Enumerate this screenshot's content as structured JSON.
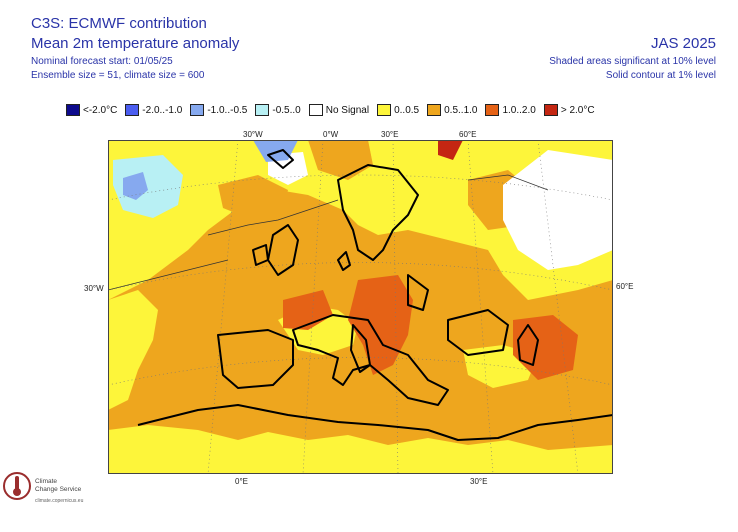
{
  "header": {
    "title_line1": "C3S: ECMWF contribution",
    "title_line2": "Mean 2m temperature anomaly",
    "forecast_start": "Nominal forecast start: 01/05/25",
    "ensemble": "Ensemble size = 51, climate size = 600",
    "season": "JAS 2025",
    "significance_shaded": "Shaded areas significant at 10% level",
    "significance_contour": "Solid contour at 1% level"
  },
  "legend": [
    {
      "label": "<-2.0°C",
      "color": "#0d0a8c"
    },
    {
      "label": "-2.0..-1.0",
      "color": "#4b5df0"
    },
    {
      "label": "-1.0..-0.5",
      "color": "#86a9ef"
    },
    {
      "label": "-0.5..0",
      "color": "#b8f0f4"
    },
    {
      "label": "No Signal",
      "color": "#ffffff"
    },
    {
      "label": "0..0.5",
      "color": "#fdf53a"
    },
    {
      "label": "0.5..1.0",
      "color": "#eea61e"
    },
    {
      "label": "1.0..2.0",
      "color": "#e56216"
    },
    {
      "label": "> 2.0°C",
      "color": "#c42612"
    }
  ],
  "axes": {
    "top": [
      "30°W",
      "0°W",
      "30°E",
      "60°E"
    ],
    "left": "30°W",
    "right": "60°E",
    "bottom": [
      "0°E",
      "30°E"
    ]
  },
  "logo": {
    "line1": "Climate",
    "line2": "Change Service",
    "url": "climate.copernicus.eu"
  }
}
